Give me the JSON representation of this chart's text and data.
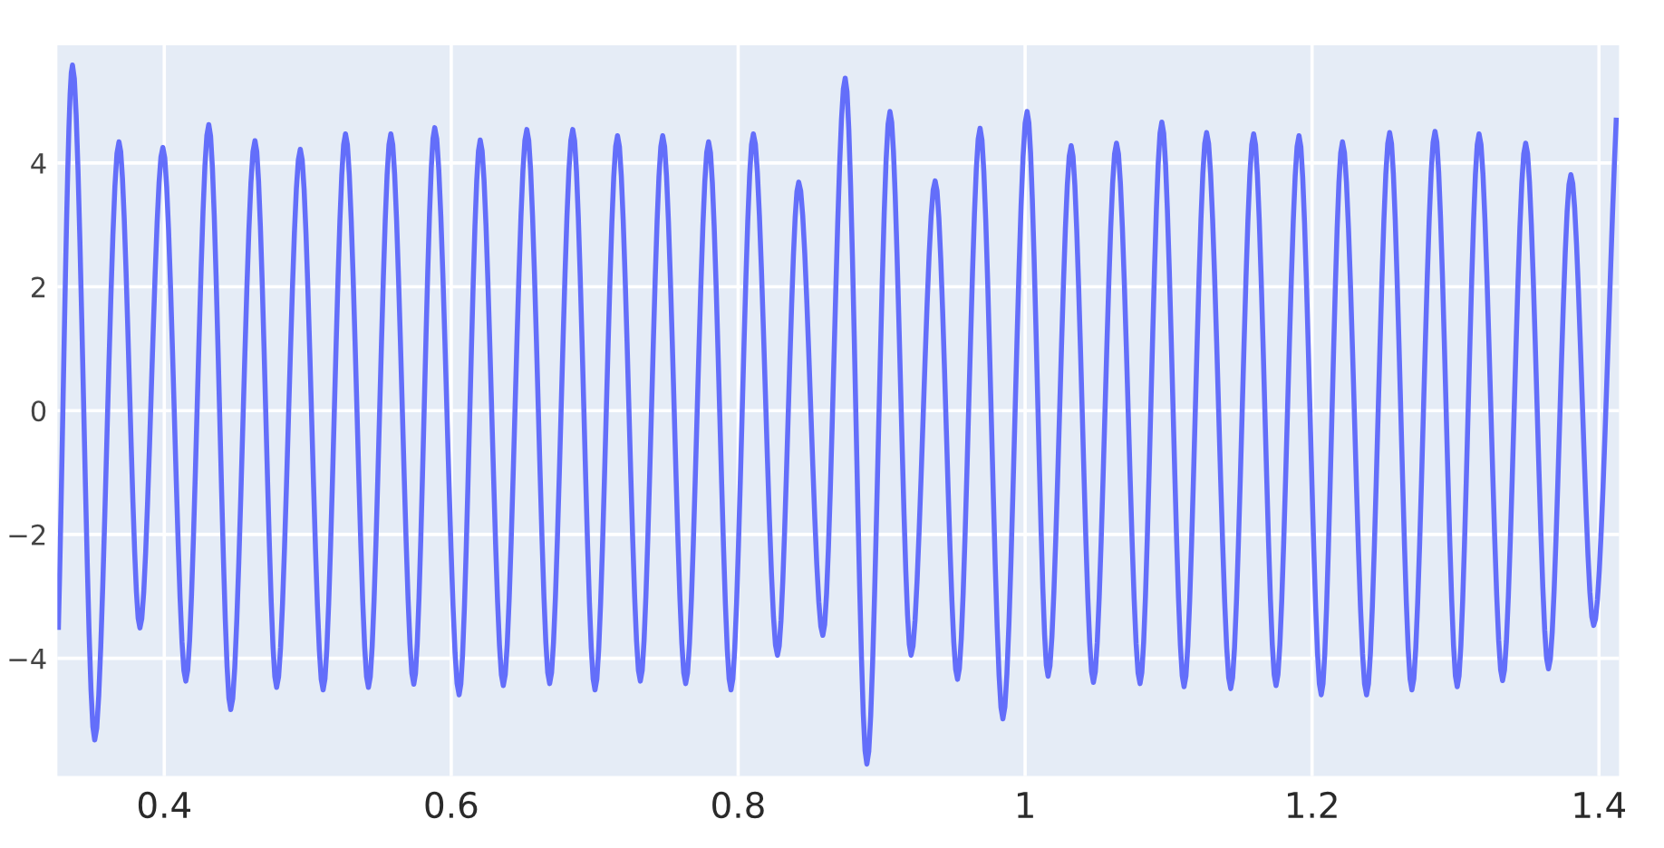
{
  "chart_data": {
    "type": "line",
    "x": [
      0.3262,
      0.336,
      0.3515,
      0.3684,
      0.383,
      0.399,
      0.415,
      0.431,
      0.4463,
      0.4632,
      0.4783,
      0.4948,
      0.5107,
      0.5263,
      0.5423,
      0.5579,
      0.5739,
      0.5885,
      0.6055,
      0.6202,
      0.6363,
      0.6527,
      0.6686,
      0.6847,
      0.7002,
      0.7159,
      0.7318,
      0.7474,
      0.7634,
      0.7794,
      0.795,
      0.8106,
      0.8274,
      0.8422,
      0.859,
      0.8746,
      0.8897,
      0.9058,
      0.9205,
      0.9373,
      0.9529,
      0.9686,
      0.9845,
      1.0014,
      1.016,
      1.0321,
      1.0476,
      1.0637,
      1.0801,
      1.0953,
      1.1108,
      1.1265,
      1.1433,
      1.1593,
      1.1749,
      1.1909,
      1.2064,
      1.2212,
      1.238,
      1.2541,
      1.2696,
      1.2857,
      1.3012,
      1.3164,
      1.3328,
      1.3489,
      1.3648,
      1.3804,
      1.3963,
      1.412
    ],
    "series": [
      {
        "color": "#636efa",
        "values": [
          -3.5,
          5.58,
          -5.32,
          4.34,
          -3.51,
          4.25,
          -4.37,
          4.62,
          -4.83,
          4.36,
          -4.47,
          4.22,
          -4.51,
          4.47,
          -4.47,
          4.47,
          -4.42,
          4.57,
          -4.59,
          4.37,
          -4.44,
          4.54,
          -4.41,
          4.54,
          -4.51,
          4.44,
          -4.37,
          4.44,
          -4.41,
          4.34,
          -4.51,
          4.47,
          -3.95,
          3.69,
          -3.63,
          5.37,
          -5.71,
          4.83,
          -3.95,
          3.71,
          -4.34,
          4.56,
          -4.98,
          4.83,
          -4.29,
          4.28,
          -4.39,
          4.32,
          -4.41,
          4.66,
          -4.46,
          4.49,
          -4.49,
          4.47,
          -4.44,
          4.44,
          -4.59,
          4.34,
          -4.59,
          4.49,
          -4.51,
          4.51,
          -4.46,
          4.47,
          -4.36,
          4.32,
          -4.17,
          3.81,
          -3.47,
          4.69
        ]
      }
    ],
    "xlim": [
      0.3255,
      1.414
    ],
    "ylim": [
      -5.9,
      5.9
    ],
    "xticks": [
      0.4,
      0.6,
      0.8,
      1,
      1.2,
      1.4
    ],
    "yticks": [
      {
        "value": -4,
        "label": "−4"
      },
      {
        "value": -2,
        "label": "−2"
      },
      0,
      2,
      4
    ],
    "grid": true,
    "line_style": "solid"
  }
}
